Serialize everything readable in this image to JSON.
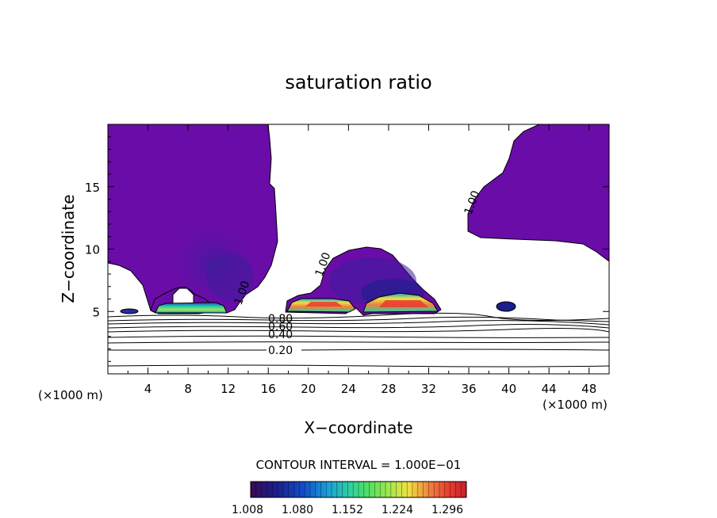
{
  "chart_data": {
    "type": "contour",
    "title": "saturation ratio",
    "xlabel": "X−coordinate",
    "ylabel": "Z−coordinate",
    "x_unit_left": "(×1000 m)",
    "x_unit_right": "(×1000 m)",
    "xlim": [
      0,
      50
    ],
    "ylim": [
      0,
      20
    ],
    "x_ticks": [
      4,
      8,
      12,
      16,
      20,
      24,
      28,
      32,
      36,
      40,
      44,
      48
    ],
    "y_ticks": [
      5,
      10,
      15
    ],
    "contour_levels": [
      0.2,
      0.4,
      0.6,
      0.8,
      1.0
    ],
    "contour_labels": [
      "0.20",
      "0.40",
      "0.60",
      "0.80",
      "1.00"
    ],
    "contour_interval_text": "CONTOUR INTERVAL = 1.000E−01",
    "colorbar": {
      "ticks": [
        "1.008",
        "1.080",
        "1.152",
        "1.224",
        "1.296"
      ],
      "colors": [
        "#3a0a54",
        "#1b1f8c",
        "#1450c8",
        "#1aa0d8",
        "#2fd0a0",
        "#52e060",
        "#a0e850",
        "#f0e040",
        "#f08040",
        "#e83c30",
        "#c81e28"
      ]
    },
    "shaded_fill_color": "#6a0ca8",
    "grid": false
  }
}
